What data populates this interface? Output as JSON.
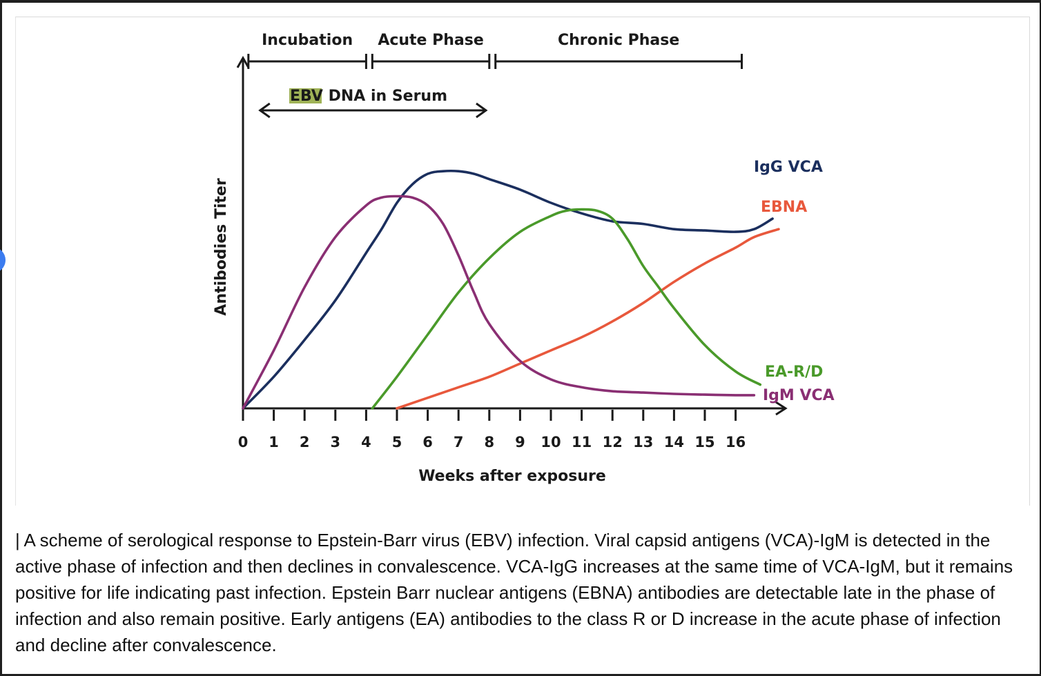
{
  "caption": "| A scheme of serological response to Epstein-Barr virus (EBV) infection. Viral capsid antigens (VCA)-IgM is detected in the active phase of infection and then declines in convalescence. VCA-IgG increases at the same time of VCA-IgM, but it remains positive for life indicating past infection. Epstein Barr nuclear antigens (EBNA) antibodies are detectable late in the phase of infection and also remain positive. Early antigens (EA) antibodies to the class R or D increase in the acute phase of infection and decline after convalescence.",
  "chart_data": {
    "type": "line",
    "title": "",
    "xlabel": "Weeks after exposure",
    "ylabel": "Antibodies Titer",
    "xlim": [
      0,
      18
    ],
    "ylim": [
      0,
      100
    ],
    "x_ticks": [
      0,
      1,
      2,
      3,
      4,
      5,
      6,
      7,
      8,
      9,
      10,
      11,
      12,
      13,
      14,
      15,
      16
    ],
    "x_tick_labels": [
      "0",
      "1",
      "2",
      "3",
      "4",
      "5",
      "6",
      "7",
      "8",
      "9",
      "10",
      "11",
      "12",
      "13",
      "14",
      "15",
      "16"
    ],
    "phases": [
      {
        "label": "Incubation",
        "start": 0.4,
        "end": 4.0
      },
      {
        "label": "Acute Phase",
        "start": 4.2,
        "end": 8.0
      },
      {
        "label": "Chronic Phase",
        "start": 8.2,
        "end": 16.2
      }
    ],
    "dna_span": {
      "label_highlight": "EBV",
      "label_rest": " DNA in Serum",
      "start": 0.6,
      "end": 7.6
    },
    "series": [
      {
        "name": "IgG VCA",
        "color": "#1b2f5e",
        "x": [
          0,
          1,
          2,
          3,
          4,
          4.5,
          5,
          5.5,
          6,
          6.5,
          7,
          7.5,
          8,
          9,
          10,
          11,
          12,
          13,
          14,
          15,
          16,
          16.6,
          17.2
        ],
        "y": [
          0,
          12,
          26,
          41,
          59,
          68,
          78,
          85,
          89,
          90,
          90,
          89,
          87,
          83,
          78,
          74,
          71,
          70,
          68,
          67.5,
          67,
          68,
          72
        ]
      },
      {
        "name": "EBNA",
        "color": "#e8583c",
        "x": [
          5,
          6,
          7,
          8,
          9,
          10,
          11,
          12,
          13,
          14,
          15,
          16,
          16.6,
          17.4
        ],
        "y": [
          0,
          4,
          8,
          12,
          17,
          22,
          27,
          33,
          40,
          48,
          55,
          61,
          65,
          68
        ]
      },
      {
        "name": "EA-R/D",
        "color": "#4a9a2a",
        "x": [
          4.2,
          5,
          6,
          7,
          8,
          9,
          10,
          10.5,
          11,
          11.5,
          12,
          12.5,
          13,
          13.5,
          14,
          15,
          16,
          16.8
        ],
        "y": [
          0,
          12,
          28,
          44,
          57,
          67,
          73,
          75,
          75.5,
          75,
          72,
          64,
          54,
          46,
          38,
          24,
          14,
          9
        ]
      },
      {
        "name": "IgM VCA",
        "color": "#8a2f73",
        "x": [
          0,
          1,
          2,
          3,
          4,
          4.5,
          5,
          5.5,
          6,
          6.5,
          7,
          7.5,
          8,
          9,
          10,
          11,
          12,
          13,
          14,
          15,
          16,
          16.6
        ],
        "y": [
          0,
          22,
          46,
          65,
          77,
          80,
          80.5,
          80,
          77,
          70,
          58,
          44,
          32,
          18,
          11,
          8,
          6.5,
          6,
          5.5,
          5.2,
          5,
          5
        ]
      }
    ]
  },
  "colors": {
    "axis": "#1a1a1a",
    "text": "#1a1a1a",
    "highlight": "#8fa63a"
  }
}
